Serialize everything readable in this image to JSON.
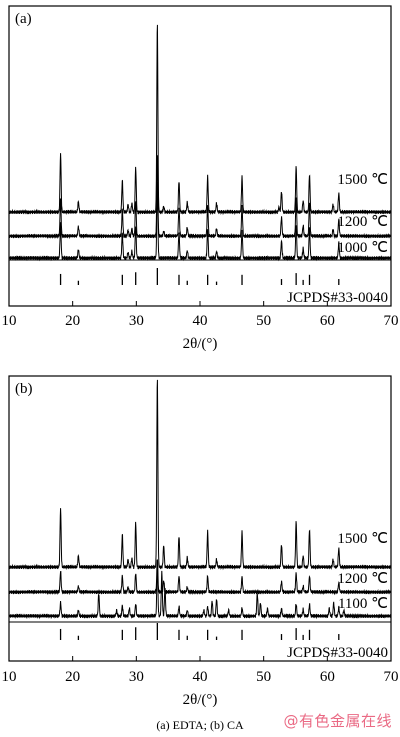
{
  "caption": "(a) EDTA; (b) CA",
  "watermark": "@有色金属在线",
  "chart_data": [
    {
      "type": "line",
      "panel_label": "(a)",
      "xlabel": "2θ/(°)",
      "ylabel": "",
      "xlim": [
        10,
        70
      ],
      "xticks": [
        10,
        20,
        30,
        40,
        50,
        60,
        70
      ],
      "grid": false,
      "series": [
        {
          "name": "1500 ℃",
          "peaks": [
            [
              18.1,
              0.62
            ],
            [
              20.9,
              0.11
            ],
            [
              27.8,
              0.33
            ],
            [
              28.7,
              0.08
            ],
            [
              29.3,
              0.09
            ],
            [
              29.9,
              0.47
            ],
            [
              33.3,
              2.0
            ],
            [
              34.3,
              0.06
            ],
            [
              36.7,
              0.33
            ],
            [
              38.0,
              0.1
            ],
            [
              41.2,
              0.37
            ],
            [
              42.6,
              0.09
            ],
            [
              46.6,
              0.37
            ],
            [
              52.4,
              0.05
            ],
            [
              52.8,
              0.22
            ],
            [
              55.1,
              0.48
            ],
            [
              56.2,
              0.12
            ],
            [
              57.2,
              0.4
            ],
            [
              60.9,
              0.08
            ],
            [
              61.8,
              0.2
            ]
          ]
        },
        {
          "name": "1200 ℃",
          "peaks": [
            [
              18.1,
              0.4
            ],
            [
              20.9,
              0.1
            ],
            [
              27.8,
              0.28
            ],
            [
              28.7,
              0.06
            ],
            [
              29.3,
              0.08
            ],
            [
              29.9,
              0.38
            ],
            [
              33.3,
              0.88
            ],
            [
              34.3,
              0.05
            ],
            [
              36.7,
              0.3
            ],
            [
              38.0,
              0.09
            ],
            [
              41.2,
              0.33
            ],
            [
              42.6,
              0.08
            ],
            [
              46.6,
              0.32
            ],
            [
              52.8,
              0.2
            ],
            [
              55.1,
              0.4
            ],
            [
              56.2,
              0.11
            ],
            [
              57.2,
              0.36
            ],
            [
              60.9,
              0.07
            ],
            [
              61.8,
              0.18
            ]
          ]
        },
        {
          "name": "1000 ℃",
          "peaks": [
            [
              18.1,
              0.36
            ],
            [
              20.9,
              0.09
            ],
            [
              27.8,
              0.26
            ],
            [
              28.7,
              0.06
            ],
            [
              29.3,
              0.07
            ],
            [
              29.9,
              0.34
            ],
            [
              33.3,
              0.8
            ],
            [
              36.7,
              0.27
            ],
            [
              38.0,
              0.08
            ],
            [
              41.2,
              0.3
            ],
            [
              42.6,
              0.07
            ],
            [
              46.6,
              0.29
            ],
            [
              52.8,
              0.18
            ],
            [
              55.1,
              0.36
            ],
            [
              56.2,
              0.1
            ],
            [
              57.2,
              0.32
            ],
            [
              61.8,
              0.16
            ]
          ]
        }
      ],
      "reference": {
        "name": "JCPDS#33-0040",
        "lines": [
          [
            18.1,
            0.65
          ],
          [
            20.9,
            0.25
          ],
          [
            27.8,
            0.6
          ],
          [
            29.9,
            0.75
          ],
          [
            33.3,
            1.0
          ],
          [
            36.7,
            0.6
          ],
          [
            38.0,
            0.25
          ],
          [
            41.2,
            0.6
          ],
          [
            42.6,
            0.2
          ],
          [
            46.6,
            0.6
          ],
          [
            52.8,
            0.35
          ],
          [
            55.1,
            0.7
          ],
          [
            56.2,
            0.3
          ],
          [
            57.2,
            0.6
          ],
          [
            61.8,
            0.35
          ]
        ]
      }
    },
    {
      "type": "line",
      "panel_label": "(b)",
      "xlabel": "2θ/(°)",
      "ylabel": "",
      "xlim": [
        10,
        70
      ],
      "xticks": [
        10,
        20,
        30,
        40,
        50,
        60,
        70
      ],
      "grid": false,
      "series": [
        {
          "name": "1500 ℃",
          "peaks": [
            [
              18.1,
              0.62
            ],
            [
              20.9,
              0.12
            ],
            [
              27.8,
              0.34
            ],
            [
              28.7,
              0.08
            ],
            [
              29.3,
              0.09
            ],
            [
              29.9,
              0.47
            ],
            [
              33.3,
              2.0
            ],
            [
              34.3,
              0.23
            ],
            [
              36.7,
              0.33
            ],
            [
              38.0,
              0.1
            ],
            [
              41.2,
              0.37
            ],
            [
              42.6,
              0.08
            ],
            [
              46.6,
              0.37
            ],
            [
              52.8,
              0.24
            ],
            [
              55.1,
              0.48
            ],
            [
              56.2,
              0.12
            ],
            [
              57.2,
              0.4
            ],
            [
              60.9,
              0.08
            ],
            [
              61.8,
              0.2
            ]
          ]
        },
        {
          "name": "1200 ℃",
          "peaks": [
            [
              18.1,
              0.22
            ],
            [
              20.9,
              0.06
            ],
            [
              27.8,
              0.17
            ],
            [
              28.7,
              0.05
            ],
            [
              29.9,
              0.2
            ],
            [
              33.3,
              0.36
            ],
            [
              34.3,
              0.12
            ],
            [
              36.7,
              0.17
            ],
            [
              38.0,
              0.05
            ],
            [
              41.2,
              0.17
            ],
            [
              46.6,
              0.16
            ],
            [
              52.8,
              0.11
            ],
            [
              55.1,
              0.2
            ],
            [
              56.2,
              0.06
            ],
            [
              57.2,
              0.17
            ],
            [
              61.8,
              0.1
            ]
          ]
        },
        {
          "name": "1100 ℃",
          "peaks": [
            [
              18.1,
              0.14
            ],
            [
              20.9,
              0.06
            ],
            [
              24.1,
              0.24
            ],
            [
              26.9,
              0.06
            ],
            [
              27.8,
              0.11
            ],
            [
              28.9,
              0.08
            ],
            [
              29.9,
              0.13
            ],
            [
              33.3,
              0.55
            ],
            [
              34.0,
              0.46
            ],
            [
              34.5,
              0.3
            ],
            [
              36.7,
              0.1
            ],
            [
              38.0,
              0.06
            ],
            [
              40.6,
              0.06
            ],
            [
              41.2,
              0.1
            ],
            [
              41.9,
              0.16
            ],
            [
              42.6,
              0.18
            ],
            [
              44.5,
              0.06
            ],
            [
              46.6,
              0.08
            ],
            [
              49.0,
              0.24
            ],
            [
              49.5,
              0.14
            ],
            [
              50.6,
              0.08
            ],
            [
              52.8,
              0.08
            ],
            [
              55.1,
              0.13
            ],
            [
              56.2,
              0.07
            ],
            [
              57.2,
              0.12
            ],
            [
              60.3,
              0.08
            ],
            [
              61.0,
              0.14
            ],
            [
              61.8,
              0.09
            ],
            [
              62.6,
              0.06
            ]
          ]
        }
      ],
      "reference": {
        "name": "JCPDS#33-0040",
        "lines": [
          [
            18.1,
            0.65
          ],
          [
            20.9,
            0.25
          ],
          [
            27.8,
            0.6
          ],
          [
            29.9,
            0.75
          ],
          [
            33.3,
            1.0
          ],
          [
            36.7,
            0.6
          ],
          [
            38.0,
            0.25
          ],
          [
            41.2,
            0.6
          ],
          [
            42.6,
            0.2
          ],
          [
            46.6,
            0.6
          ],
          [
            52.8,
            0.35
          ],
          [
            55.1,
            0.7
          ],
          [
            56.2,
            0.3
          ],
          [
            57.2,
            0.6
          ],
          [
            61.8,
            0.35
          ]
        ]
      }
    }
  ]
}
